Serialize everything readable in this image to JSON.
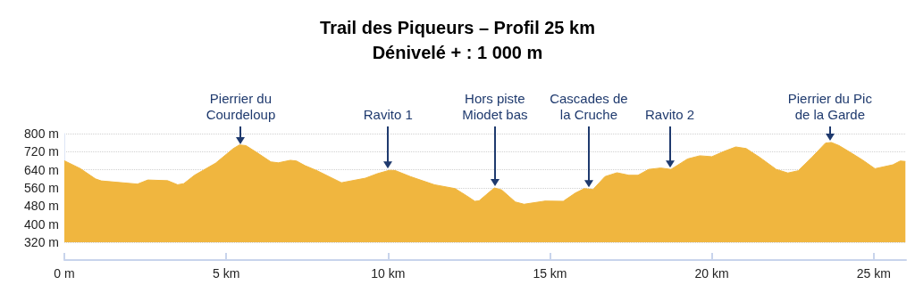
{
  "chart_data": {
    "type": "area",
    "title": "Trail des Piqueurs – Profil 25 km",
    "subtitle": "Dénivelé + : 1 000 m",
    "x": [
      0,
      0.5,
      0.96,
      1.14,
      2.26,
      2.58,
      3.19,
      3.5,
      3.69,
      4.02,
      4.67,
      5.22,
      5.41,
      5.61,
      5.96,
      6.38,
      6.61,
      6.98,
      7.17,
      7.44,
      7.81,
      8.56,
      9.3,
      9.67,
      10.04,
      10.22,
      10.69,
      11.43,
      12.07,
      12.44,
      12.68,
      12.81,
      13.28,
      13.51,
      13.93,
      14.2,
      14.85,
      15.41,
      15.78,
      16.06,
      16.33,
      16.7,
      17.07,
      17.44,
      17.72,
      18.05,
      18.42,
      18.74,
      19.25,
      19.63,
      20.0,
      20.37,
      20.74,
      21.06,
      21.48,
      21.99,
      22.35,
      22.67,
      23.09,
      23.51,
      23.69,
      23.93,
      24.3,
      24.67,
      25.04,
      25.59,
      25.82,
      25.98
    ],
    "series": [
      {
        "color": "#f0b63f",
        "values": [
          680,
          645,
          600,
          591,
          577,
          595,
          592,
          574,
          579,
          616,
          669,
          734,
          750,
          747,
          715,
          675,
          671,
          682,
          679,
          658,
          636,
          583,
          603,
          623,
          638,
          637,
          610,
          574,
          557,
          524,
          501,
          503,
          560,
          551,
          498,
          488,
          502,
          501,
          537,
          557,
          553,
          610,
          627,
          616,
          616,
          642,
          648,
          642,
          688,
          702,
          698,
          721,
          741,
          734,
          695,
          642,
          626,
          636,
          695,
          758,
          761,
          747,
          715,
          682,
          645,
          662,
          679,
          677
        ]
      }
    ],
    "xlim": [
      0,
      26
    ],
    "ylim": [
      320,
      800
    ],
    "xticks": [
      {
        "value": 0,
        "label": "0 m"
      },
      {
        "value": 5,
        "label": "5 km"
      },
      {
        "value": 10,
        "label": "10 km"
      },
      {
        "value": 15,
        "label": "15 km"
      },
      {
        "value": 20,
        "label": "20 km"
      },
      {
        "value": 25,
        "label": "25 km"
      }
    ],
    "yticks": [
      {
        "value": 320,
        "label": "320 m"
      },
      {
        "value": 400,
        "label": "400 m"
      },
      {
        "value": 480,
        "label": "480 m"
      },
      {
        "value": 560,
        "label": "560 m"
      },
      {
        "value": 640,
        "label": "640 m"
      },
      {
        "value": 720,
        "label": "720 m"
      },
      {
        "value": 800,
        "label": "800 m"
      }
    ],
    "grid": "y",
    "marker": "none",
    "annotations": [
      {
        "text": "Pierrier du\nCourdeloup",
        "x": 5.45,
        "y": 745
      },
      {
        "text": "Ravito 1",
        "x": 10.0,
        "y": 638
      },
      {
        "text": "Hors piste\nMiodet bas",
        "x": 13.3,
        "y": 560
      },
      {
        "text": "Cascades de\nla Cruche",
        "x": 16.2,
        "y": 555
      },
      {
        "text": "Ravito 2",
        "x": 18.7,
        "y": 642
      },
      {
        "text": "Pierrier du Pic\nde la Garde",
        "x": 23.65,
        "y": 761
      }
    ]
  }
}
